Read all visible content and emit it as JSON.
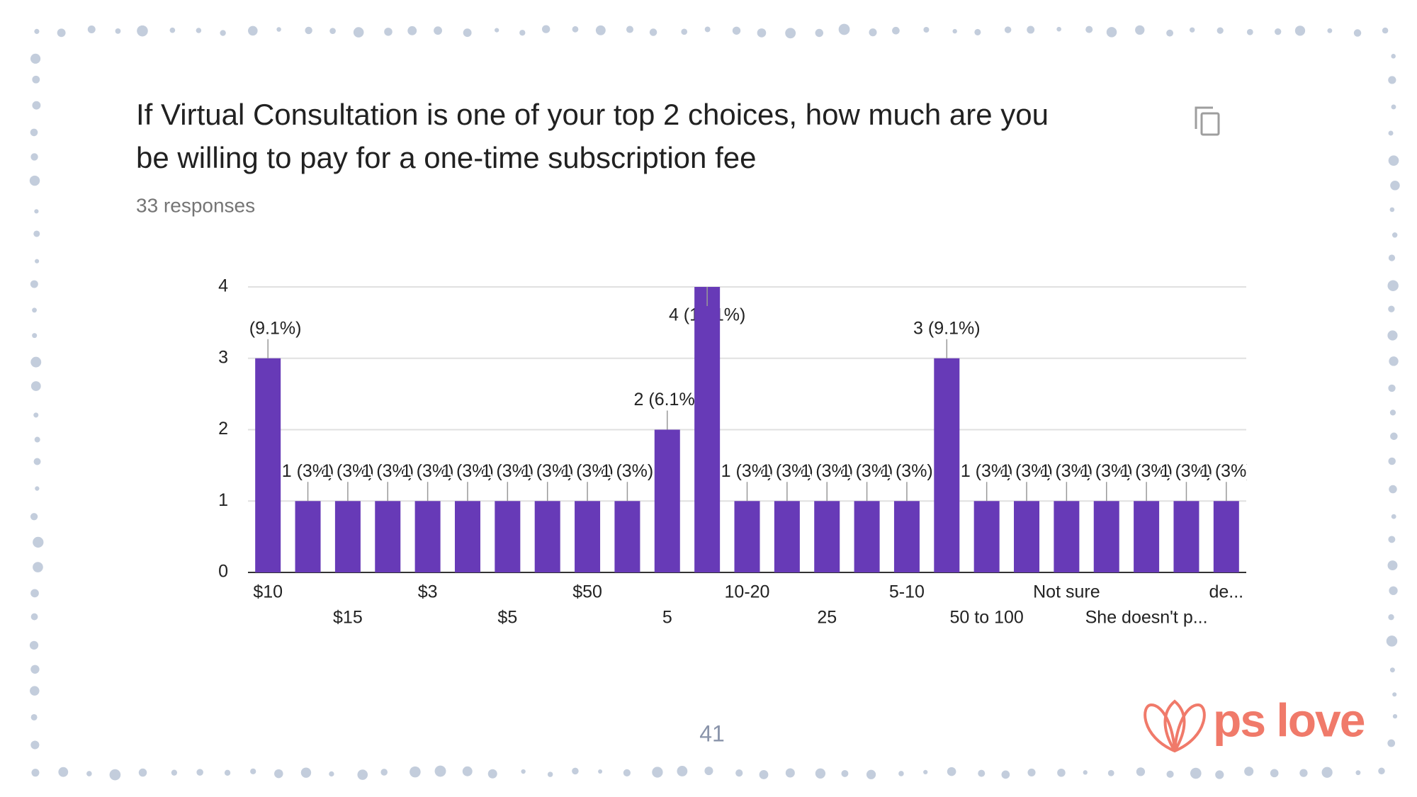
{
  "chart_data": {
    "type": "bar",
    "title": [
      "If Virtual Consultation is one of your top 2 choices, how much are you",
      "be willing to pay for a one-time subscription fee"
    ],
    "subtitle": "33 responses",
    "categories": [
      "$10",
      null,
      "$15",
      null,
      "$3",
      null,
      "$5",
      null,
      "$50",
      null,
      "5",
      null,
      "10-20",
      null,
      "25",
      null,
      "5-10",
      null,
      "50 to 100",
      null,
      "Not sure",
      null,
      "She doesn't p...",
      null,
      "de..."
    ],
    "values": [
      3,
      1,
      1,
      1,
      1,
      1,
      1,
      1,
      1,
      1,
      2,
      4,
      1,
      1,
      1,
      1,
      1,
      3,
      1,
      1,
      1,
      1,
      1,
      1,
      1
    ],
    "value_labels": [
      "3 (9.1%)",
      "1 (3%)",
      "1 (3%)",
      "1 (3%)",
      "1 (3%)",
      "1 (3%)",
      "1 (3%)",
      "1 (3%)",
      "1 (3%)",
      "1 (3%)",
      "2 (6.1%)",
      "4 (12.1%)",
      "1 (3%)",
      "1 (3%)",
      "1 (3%)",
      "1 (3%)",
      "1 (3%)",
      "3 (9.1%)",
      "1 (3%)",
      "1 (3%)",
      "1 (3%)",
      "1 (3%)",
      "1 (3%)",
      "1 (3%)",
      "1 (3%)"
    ],
    "color": "#673ab7",
    "ylim": [
      0,
      4
    ],
    "yticks": [
      0,
      1,
      2,
      3,
      4
    ],
    "grid": true
  },
  "page_number": "41",
  "logo": "ps love"
}
